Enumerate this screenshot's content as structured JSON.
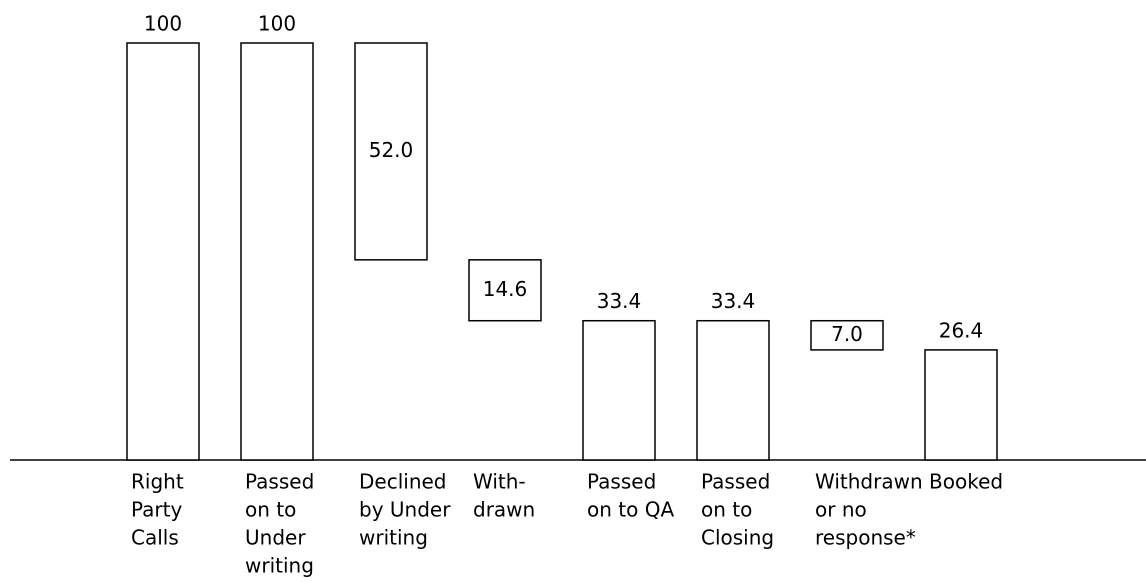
{
  "chart_data": {
    "type": "waterfall",
    "categories": [
      [
        "Right",
        "Party",
        "Calls"
      ],
      [
        "Passed",
        "on to",
        "Under",
        "writing"
      ],
      [
        "Declined",
        "by Under",
        "writing"
      ],
      [
        "With-",
        "drawn"
      ],
      [
        "Passed",
        "on to QA"
      ],
      [
        "Passed",
        "on to",
        "Closing"
      ],
      [
        "Withdrawn",
        "or no",
        "response*"
      ],
      [
        "Booked"
      ]
    ],
    "values": [
      100,
      100,
      52.0,
      14.6,
      33.4,
      33.4,
      7.0,
      26.4
    ],
    "value_labels": [
      "100",
      "100",
      "52.0",
      "14.6",
      "33.4",
      "33.4",
      "7.0",
      "26.4"
    ],
    "ylim": [
      0,
      100
    ]
  }
}
